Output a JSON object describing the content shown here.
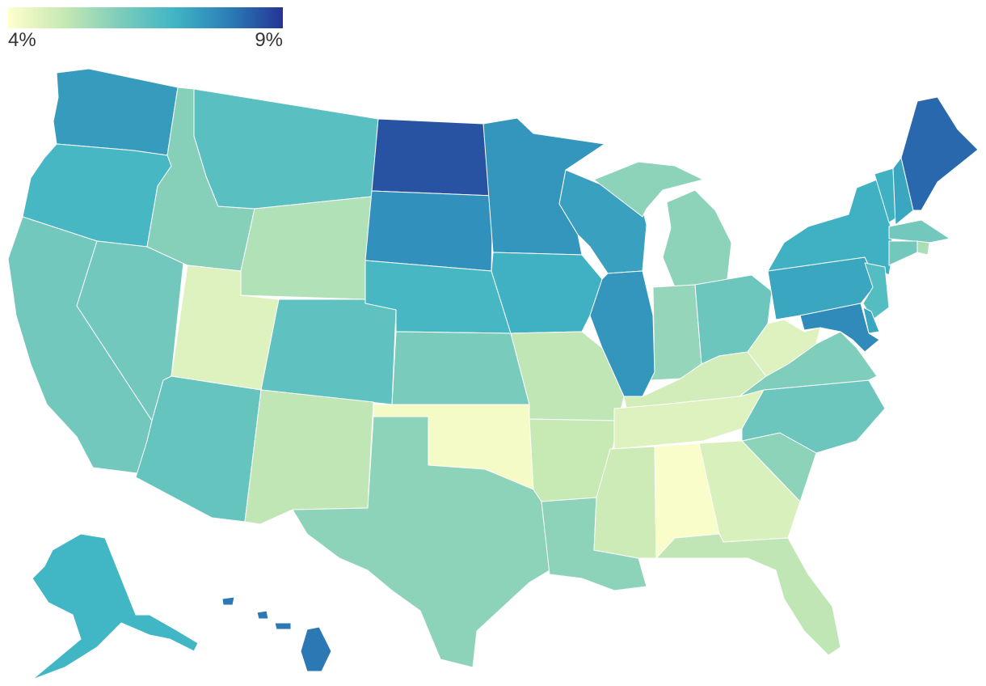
{
  "legend": {
    "min_label": "4%",
    "max_label": "9%",
    "min_value": 4,
    "max_value": 9,
    "color_stops": [
      "#ffffcc",
      "#c7e9b4",
      "#7fcdbb",
      "#41b6c4",
      "#2c7fb8",
      "#253494"
    ]
  },
  "map_data": {
    "type": "choropleth",
    "region": "United States",
    "unit": "%",
    "states": [
      {
        "code": "WA",
        "value": 7.5
      },
      {
        "code": "OR",
        "value": 6.9
      },
      {
        "code": "CA",
        "value": 6.2
      },
      {
        "code": "NV",
        "value": 6.2
      },
      {
        "code": "ID",
        "value": 5.9
      },
      {
        "code": "MT",
        "value": 6.6
      },
      {
        "code": "WY",
        "value": 5.3
      },
      {
        "code": "UT",
        "value": 4.6
      },
      {
        "code": "CO",
        "value": 6.5
      },
      {
        "code": "AZ",
        "value": 6.4
      },
      {
        "code": "NM",
        "value": 5.1
      },
      {
        "code": "ND",
        "value": 8.6
      },
      {
        "code": "SD",
        "value": 7.7
      },
      {
        "code": "NE",
        "value": 6.9
      },
      {
        "code": "KS",
        "value": 6.1
      },
      {
        "code": "OK",
        "value": 4.2
      },
      {
        "code": "TX",
        "value": 5.8
      },
      {
        "code": "MN",
        "value": 7.6
      },
      {
        "code": "IA",
        "value": 7.1
      },
      {
        "code": "MO",
        "value": 5.1
      },
      {
        "code": "AR",
        "value": 5.0
      },
      {
        "code": "LA",
        "value": 5.8
      },
      {
        "code": "WI",
        "value": 7.4
      },
      {
        "code": "IL",
        "value": 7.6
      },
      {
        "code": "MI",
        "value": 5.8
      },
      {
        "code": "IN",
        "value": 5.7
      },
      {
        "code": "OH",
        "value": 6.3
      },
      {
        "code": "KY",
        "value": 4.8
      },
      {
        "code": "TN",
        "value": 4.6
      },
      {
        "code": "MS",
        "value": 4.9
      },
      {
        "code": "AL",
        "value": 4.1
      },
      {
        "code": "GA",
        "value": 4.7
      },
      {
        "code": "FL",
        "value": 5.1
      },
      {
        "code": "SC",
        "value": 5.8
      },
      {
        "code": "NC",
        "value": 6.3
      },
      {
        "code": "VA",
        "value": 6.0
      },
      {
        "code": "WV",
        "value": 4.6
      },
      {
        "code": "PA",
        "value": 7.3
      },
      {
        "code": "NY",
        "value": 7.1
      },
      {
        "code": "VT",
        "value": 7.1
      },
      {
        "code": "NH",
        "value": 7.3
      },
      {
        "code": "ME",
        "value": 8.3
      },
      {
        "code": "MA",
        "value": 6.2
      },
      {
        "code": "RI",
        "value": 5.4
      },
      {
        "code": "CT",
        "value": 6.2
      },
      {
        "code": "NJ",
        "value": 6.7
      },
      {
        "code": "DE",
        "value": 7.3
      },
      {
        "code": "MD",
        "value": 7.8
      },
      {
        "code": "AK",
        "value": 7.0
      },
      {
        "code": "HI",
        "value": 8.1
      }
    ]
  }
}
